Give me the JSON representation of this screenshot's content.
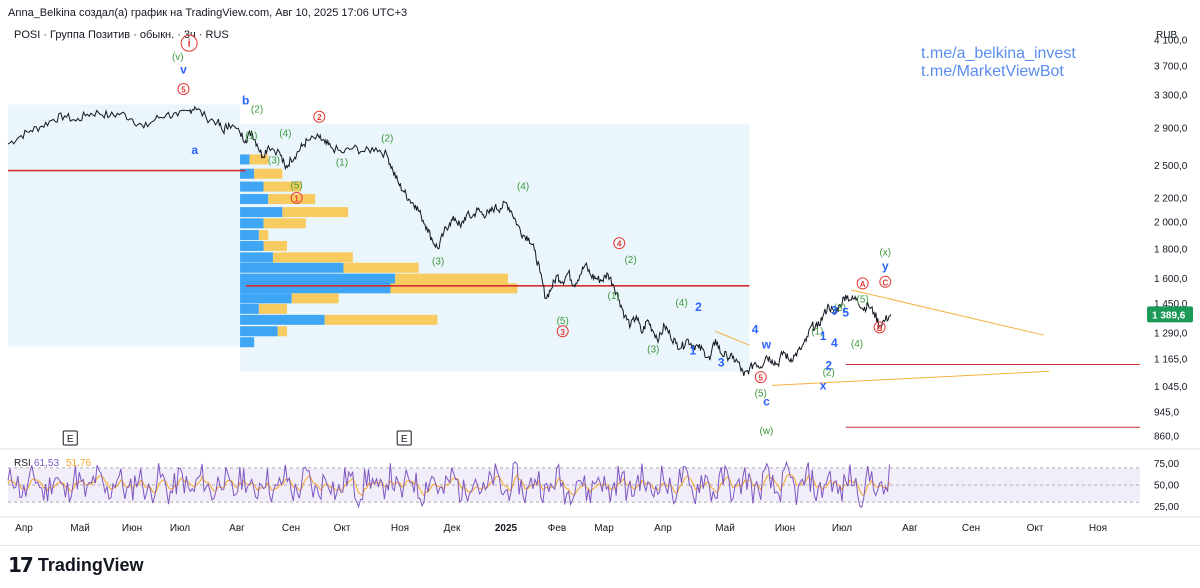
{
  "header": {
    "author_line": "Anna_Belkina создал(а) график на TradingView.com, Авг 10, 2025 17:06 UTC+3",
    "symbol_line": "POSI · Группа Позитив · обыкн. · 3ч · RUS"
  },
  "links": [
    "t.me/a_belkina_invest",
    "t.me/MarketViewBot"
  ],
  "branding": {
    "mark": "17",
    "name": "TradingView"
  },
  "colors": {
    "price_line": "#131722",
    "wave_green": "#3d9a3d",
    "wave_blue": "#2962ff",
    "wave_red": "#e53935",
    "link_blue": "#5b8def",
    "rsi_line": "#7e57c2",
    "rsi_ma": "#f5a623",
    "current_price_bg": "#1b9a57",
    "level_red": "#d32f2f",
    "trend_orange": "#f5b041",
    "vp_blue": "#2196f3",
    "vp_yellow": "#f9c74f",
    "range_bg": "#e6f4fb"
  },
  "chart_data": {
    "type": "line",
    "title": "POSI · Группа Позитив · обыкн. · 3ч · RUS",
    "currency": "RUB",
    "ylim": [
      830,
      4300
    ],
    "y_ticks": [
      {
        "v": 4100,
        "label": "4 100,0"
      },
      {
        "v": 3700,
        "label": "3 700,0"
      },
      {
        "v": 3300,
        "label": "3 300,0"
      },
      {
        "v": 2900,
        "label": "2 900,0"
      },
      {
        "v": 2500,
        "label": "2 500,0"
      },
      {
        "v": 2200,
        "label": "2 200,0"
      },
      {
        "v": 2000,
        "label": "2 000,0"
      },
      {
        "v": 1800,
        "label": "1 800,0"
      },
      {
        "v": 1600,
        "label": "1 600,0"
      },
      {
        "v": 1450,
        "label": "1 450,0"
      },
      {
        "v": 1290,
        "label": "1 290,0"
      },
      {
        "v": 1165,
        "label": "1 165,0"
      },
      {
        "v": 1045,
        "label": "1 045,0"
      },
      {
        "v": 945,
        "label": "945,0"
      },
      {
        "v": 860,
        "label": "860,0"
      }
    ],
    "x_labels": [
      "Апр",
      "Май",
      "Июн",
      "Июл",
      "Авг",
      "Сен",
      "Окт",
      "Ноя",
      "Дек",
      "2025",
      "Фев",
      "Мар",
      "Апр",
      "Май",
      "Июн",
      "Июл",
      "Авг",
      "Сен",
      "Окт",
      "Ноя"
    ],
    "x_bold": [
      9
    ],
    "current_price": {
      "value": 1389.6,
      "label": "1 389,6"
    },
    "series": [
      {
        "name": "POSI price (approx.)",
        "points": [
          {
            "t": 0,
            "v": 2720
          },
          {
            "t": 2,
            "v": 2800
          },
          {
            "t": 4,
            "v": 2870
          },
          {
            "t": 6,
            "v": 2920
          },
          {
            "t": 8,
            "v": 3000
          },
          {
            "t": 10,
            "v": 3040
          },
          {
            "t": 12,
            "v": 2980
          },
          {
            "t": 14,
            "v": 3060
          },
          {
            "t": 16,
            "v": 3080
          },
          {
            "t": 18,
            "v": 3040
          },
          {
            "t": 20,
            "v": 3070
          },
          {
            "t": 22,
            "v": 3000
          },
          {
            "t": 24,
            "v": 2900
          },
          {
            "t": 26,
            "v": 3000
          },
          {
            "t": 28,
            "v": 3060
          },
          {
            "t": 30,
            "v": 3040
          },
          {
            "t": 32,
            "v": 3100
          },
          {
            "t": 33,
            "v": 3150
          },
          {
            "t": 35,
            "v": 3020
          },
          {
            "t": 37,
            "v": 2970
          },
          {
            "t": 38,
            "v": 2860
          },
          {
            "t": 39,
            "v": 2950
          },
          {
            "t": 41,
            "v": 2840
          },
          {
            "t": 42,
            "v": 2760
          },
          {
            "t": 43,
            "v": 2860
          },
          {
            "t": 44,
            "v": 2720
          },
          {
            "t": 45,
            "v": 2590
          },
          {
            "t": 46,
            "v": 2700
          },
          {
            "t": 48,
            "v": 2630
          },
          {
            "t": 49,
            "v": 2470
          },
          {
            "t": 50,
            "v": 2560
          },
          {
            "t": 51,
            "v": 2620
          },
          {
            "t": 52,
            "v": 2700
          },
          {
            "t": 53,
            "v": 2760
          },
          {
            "t": 55,
            "v": 2790
          },
          {
            "t": 56,
            "v": 2730
          },
          {
            "t": 57,
            "v": 2690
          },
          {
            "t": 59,
            "v": 2630
          },
          {
            "t": 61,
            "v": 2680
          },
          {
            "t": 63,
            "v": 2640
          },
          {
            "t": 65,
            "v": 2680
          },
          {
            "t": 67,
            "v": 2600
          },
          {
            "t": 68,
            "v": 2450
          },
          {
            "t": 69,
            "v": 2330
          },
          {
            "t": 70,
            "v": 2250
          },
          {
            "t": 71,
            "v": 2180
          },
          {
            "t": 72,
            "v": 2140
          },
          {
            "t": 73,
            "v": 2050
          },
          {
            "t": 74,
            "v": 1960
          },
          {
            "t": 75,
            "v": 1860
          },
          {
            "t": 76,
            "v": 1800
          },
          {
            "t": 77,
            "v": 1920
          },
          {
            "t": 78,
            "v": 1990
          },
          {
            "t": 79,
            "v": 2030
          },
          {
            "t": 80,
            "v": 1960
          },
          {
            "t": 81,
            "v": 2060
          },
          {
            "t": 82,
            "v": 2040
          },
          {
            "t": 83,
            "v": 2100
          },
          {
            "t": 84,
            "v": 2060
          },
          {
            "t": 85,
            "v": 2070
          },
          {
            "t": 86,
            "v": 2120
          },
          {
            "t": 87,
            "v": 2110
          },
          {
            "t": 88,
            "v": 2160
          },
          {
            "t": 89,
            "v": 2080
          },
          {
            "t": 90,
            "v": 1980
          },
          {
            "t": 91,
            "v": 1900
          },
          {
            "t": 92,
            "v": 1880
          },
          {
            "t": 93,
            "v": 1790
          },
          {
            "t": 94,
            "v": 1640
          },
          {
            "t": 95,
            "v": 1480
          },
          {
            "t": 96,
            "v": 1540
          },
          {
            "t": 97,
            "v": 1620
          },
          {
            "t": 98,
            "v": 1580
          },
          {
            "t": 99,
            "v": 1640
          },
          {
            "t": 100,
            "v": 1560
          },
          {
            "t": 101,
            "v": 1620
          },
          {
            "t": 102,
            "v": 1690
          },
          {
            "t": 103,
            "v": 1620
          },
          {
            "t": 104,
            "v": 1600
          },
          {
            "t": 105,
            "v": 1590
          },
          {
            "t": 106,
            "v": 1630
          },
          {
            "t": 107,
            "v": 1560
          },
          {
            "t": 108,
            "v": 1470
          },
          {
            "t": 109,
            "v": 1380
          },
          {
            "t": 110,
            "v": 1330
          },
          {
            "t": 111,
            "v": 1380
          },
          {
            "t": 112,
            "v": 1290
          },
          {
            "t": 113,
            "v": 1360
          },
          {
            "t": 114,
            "v": 1300
          },
          {
            "t": 115,
            "v": 1260
          },
          {
            "t": 116,
            "v": 1330
          },
          {
            "t": 117,
            "v": 1280
          },
          {
            "t": 118,
            "v": 1240
          },
          {
            "t": 119,
            "v": 1220
          },
          {
            "t": 120,
            "v": 1260
          },
          {
            "t": 121,
            "v": 1230
          },
          {
            "t": 122,
            "v": 1220
          },
          {
            "t": 123,
            "v": 1200
          },
          {
            "t": 124,
            "v": 1160
          },
          {
            "t": 125,
            "v": 1260
          },
          {
            "t": 126,
            "v": 1190
          },
          {
            "t": 127,
            "v": 1180
          },
          {
            "t": 128,
            "v": 1170
          },
          {
            "t": 129,
            "v": 1150
          },
          {
            "t": 130,
            "v": 1090
          },
          {
            "t": 131,
            "v": 1120
          },
          {
            "t": 132,
            "v": 1150
          },
          {
            "t": 133,
            "v": 1130
          },
          {
            "t": 134,
            "v": 1180
          },
          {
            "t": 135,
            "v": 1160
          },
          {
            "t": 136,
            "v": 1140
          },
          {
            "t": 137,
            "v": 1200
          },
          {
            "t": 138,
            "v": 1160
          },
          {
            "t": 139,
            "v": 1180
          },
          {
            "t": 140,
            "v": 1210
          },
          {
            "t": 141,
            "v": 1250
          },
          {
            "t": 142,
            "v": 1330
          },
          {
            "t": 143,
            "v": 1320
          },
          {
            "t": 144,
            "v": 1380
          },
          {
            "t": 145,
            "v": 1440
          },
          {
            "t": 146,
            "v": 1390
          },
          {
            "t": 147,
            "v": 1440
          },
          {
            "t": 148,
            "v": 1500
          },
          {
            "t": 149,
            "v": 1470
          },
          {
            "t": 150,
            "v": 1480
          },
          {
            "t": 151,
            "v": 1420
          },
          {
            "t": 152,
            "v": 1440
          },
          {
            "t": 153,
            "v": 1400
          },
          {
            "t": 154,
            "v": 1330
          },
          {
            "t": 155,
            "v": 1360
          },
          {
            "t": 156,
            "v": 1389.6
          }
        ]
      }
    ],
    "levels": [
      {
        "name": "upper red level",
        "value": 2450,
        "t_start": 0,
        "t_end": 42
      },
      {
        "name": "middle red level",
        "value": 1555,
        "t_start": 42,
        "t_end": 131
      },
      {
        "name": "red level 1",
        "value": 1140,
        "t_start": 148,
        "t_end": 200
      },
      {
        "name": "red level 2",
        "value": 890,
        "t_start": 148,
        "t_end": 200
      }
    ],
    "trendlines": [
      {
        "name": "orange upper",
        "t1": 149,
        "v1": 1530,
        "t2": 183,
        "v2": 1280
      },
      {
        "name": "orange lower",
        "t1": 135,
        "v1": 1050,
        "t2": 184,
        "v2": 1110
      },
      {
        "name": "orange mini",
        "t1": 125,
        "v1": 1300,
        "t2": 131,
        "v2": 1230
      }
    ],
    "range_boxes": [
      {
        "t_start": 0,
        "t_end": 41,
        "v_top": 3180,
        "v_bot": 1225
      },
      {
        "t_start": 41,
        "t_end": 131,
        "v_top": 2950,
        "v_bot": 1110
      }
    ],
    "volume_profile": [
      {
        "v": 2560,
        "blue": 2,
        "yellow": 4
      },
      {
        "v": 2420,
        "blue": 3,
        "yellow": 6
      },
      {
        "v": 2300,
        "blue": 5,
        "yellow": 8
      },
      {
        "v": 2190,
        "blue": 6,
        "yellow": 10
      },
      {
        "v": 2080,
        "blue": 9,
        "yellow": 14
      },
      {
        "v": 1990,
        "blue": 5,
        "yellow": 9
      },
      {
        "v": 1900,
        "blue": 4,
        "yellow": 2
      },
      {
        "v": 1820,
        "blue": 5,
        "yellow": 5
      },
      {
        "v": 1740,
        "blue": 7,
        "yellow": 17
      },
      {
        "v": 1670,
        "blue": 22,
        "yellow": 16
      },
      {
        "v": 1600,
        "blue": 33,
        "yellow": 24
      },
      {
        "v": 1540,
        "blue": 32,
        "yellow": 27
      },
      {
        "v": 1480,
        "blue": 11,
        "yellow": 10
      },
      {
        "v": 1420,
        "blue": 4,
        "yellow": 6
      },
      {
        "v": 1360,
        "blue": 18,
        "yellow": 24
      },
      {
        "v": 1300,
        "blue": 8,
        "yellow": 2
      },
      {
        "v": 1245,
        "blue": 3,
        "yellow": 0
      }
    ],
    "wave_labels": [
      {
        "text": "i",
        "t": 32,
        "v": 4050,
        "color": "red",
        "circled": true
      },
      {
        "text": "(v)",
        "t": 30,
        "v": 3850,
        "color": "green"
      },
      {
        "text": "v",
        "t": 31,
        "v": 3650,
        "color": "blue"
      },
      {
        "text": "5",
        "t": 31,
        "v": 3380,
        "color": "red",
        "circled": true
      },
      {
        "text": "a",
        "t": 33,
        "v": 2660,
        "color": "blue"
      },
      {
        "text": "b",
        "t": 42,
        "v": 3230,
        "color": "blue"
      },
      {
        "text": "(2)",
        "t": 44,
        "v": 3130,
        "color": "green"
      },
      {
        "text": "(1)",
        "t": 43,
        "v": 2820,
        "color": "green"
      },
      {
        "text": "(4)",
        "t": 49,
        "v": 2850,
        "color": "green"
      },
      {
        "text": "(3)",
        "t": 47,
        "v": 2560,
        "color": "green"
      },
      {
        "text": "(5)",
        "t": 51,
        "v": 2320,
        "color": "green"
      },
      {
        "text": "1",
        "t": 51,
        "v": 2200,
        "color": "red",
        "circled": true
      },
      {
        "text": "2",
        "t": 55,
        "v": 3030,
        "color": "red",
        "circled": true
      },
      {
        "text": "(2)",
        "t": 67,
        "v": 2790,
        "color": "green"
      },
      {
        "text": "(1)",
        "t": 59,
        "v": 2540,
        "color": "green"
      },
      {
        "text": "(4)",
        "t": 91,
        "v": 2310,
        "color": "green"
      },
      {
        "text": "(3)",
        "t": 76,
        "v": 1720,
        "color": "green"
      },
      {
        "text": "4",
        "t": 108,
        "v": 1840,
        "color": "red",
        "circled": true
      },
      {
        "text": "(2)",
        "t": 110,
        "v": 1730,
        "color": "green"
      },
      {
        "text": "(1)",
        "t": 107,
        "v": 1500,
        "color": "green"
      },
      {
        "text": "(5)",
        "t": 98,
        "v": 1360,
        "color": "green"
      },
      {
        "text": "3",
        "t": 98,
        "v": 1300,
        "color": "red",
        "circled": true
      },
      {
        "text": "(4)",
        "t": 119,
        "v": 1460,
        "color": "green"
      },
      {
        "text": "2",
        "t": 122,
        "v": 1430,
        "color": "blue"
      },
      {
        "text": "(3)",
        "t": 114,
        "v": 1215,
        "color": "green"
      },
      {
        "text": "1",
        "t": 121,
        "v": 1205,
        "color": "blue"
      },
      {
        "text": "4",
        "t": 132,
        "v": 1310,
        "color": "blue"
      },
      {
        "text": "3",
        "t": 126,
        "v": 1150,
        "color": "blue"
      },
      {
        "text": "w",
        "t": 134,
        "v": 1235,
        "color": "blue"
      },
      {
        "text": "5",
        "t": 133,
        "v": 1085,
        "color": "red",
        "circled": true
      },
      {
        "text": "(5)",
        "t": 133,
        "v": 1020,
        "color": "green"
      },
      {
        "text": "c",
        "t": 134,
        "v": 985,
        "color": "blue"
      },
      {
        "text": "(w)",
        "t": 134,
        "v": 880,
        "color": "green"
      },
      {
        "text": "(2)",
        "t": 145,
        "v": 1110,
        "color": "green"
      },
      {
        "text": "x",
        "t": 144,
        "v": 1050,
        "color": "blue"
      },
      {
        "text": "2",
        "t": 145,
        "v": 1135,
        "color": "blue"
      },
      {
        "text": "(1)",
        "t": 143,
        "v": 1305,
        "color": "green"
      },
      {
        "text": "1",
        "t": 144,
        "v": 1275,
        "color": "blue"
      },
      {
        "text": "4",
        "t": 146,
        "v": 1240,
        "color": "blue"
      },
      {
        "text": "(3)",
        "t": 147,
        "v": 1430,
        "color": "green"
      },
      {
        "text": "3",
        "t": 146,
        "v": 1410,
        "color": "blue"
      },
      {
        "text": "5",
        "t": 148,
        "v": 1400,
        "color": "blue"
      },
      {
        "text": "(4)",
        "t": 150,
        "v": 1240,
        "color": "green"
      },
      {
        "text": "(5)",
        "t": 151,
        "v": 1480,
        "color": "green"
      },
      {
        "text": "A",
        "t": 151,
        "v": 1570,
        "color": "red",
        "circled": true
      },
      {
        "text": "C",
        "t": 155,
        "v": 1580,
        "color": "red",
        "circled": true
      },
      {
        "text": "B",
        "t": 154,
        "v": 1320,
        "color": "red",
        "circled": true
      },
      {
        "text": "y",
        "t": 155,
        "v": 1680,
        "color": "blue"
      },
      {
        "text": "(x)",
        "t": 155,
        "v": 1780,
        "color": "green"
      }
    ],
    "event_markers": [
      {
        "text": "E",
        "t": 11
      },
      {
        "text": "E",
        "t": 70
      }
    ],
    "rsi": {
      "label": "RSI",
      "value": "61,53",
      "ma_value": "51,76",
      "ylim": [
        15,
        85
      ],
      "levels": [
        70,
        50,
        30
      ],
      "y_ticks": [
        {
          "v": 75,
          "label": "75,00"
        },
        {
          "v": 50,
          "label": "50,00"
        },
        {
          "v": 25,
          "label": "25,00"
        }
      ]
    }
  }
}
